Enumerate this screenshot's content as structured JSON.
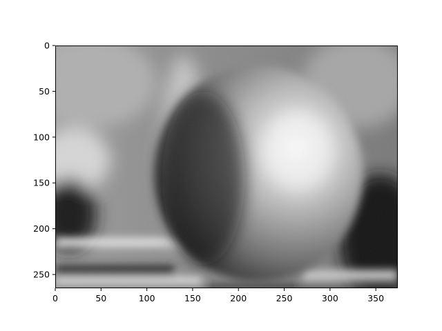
{
  "chart_data": {
    "type": "heatmap",
    "image_width": 374,
    "image_height": 265,
    "xlim": [
      0,
      374
    ],
    "ylim": [
      265,
      0
    ],
    "y_axis_inverted": true,
    "colormap": "gray",
    "grid": false,
    "x_ticks": [
      0,
      50,
      100,
      150,
      200,
      250,
      300,
      350
    ],
    "x_tick_labels": [
      "0",
      "50",
      "100",
      "150",
      "200",
      "250",
      "300",
      "350"
    ],
    "y_ticks": [
      0,
      50,
      100,
      150,
      200,
      250
    ],
    "y_tick_labels": [
      "0",
      "50",
      "100",
      "150",
      "200",
      "250"
    ],
    "image_content": {
      "apple_center": [
        222,
        140
      ],
      "apple_radius": [
        114,
        118
      ],
      "highlight_center": [
        265,
        115
      ],
      "shadow_side": "left",
      "background": "blurred grayscale scene",
      "horizontal_bands_y": [
        210,
        240,
        262
      ]
    }
  },
  "colors": {
    "frame": "#000000",
    "background": "#ffffff"
  }
}
